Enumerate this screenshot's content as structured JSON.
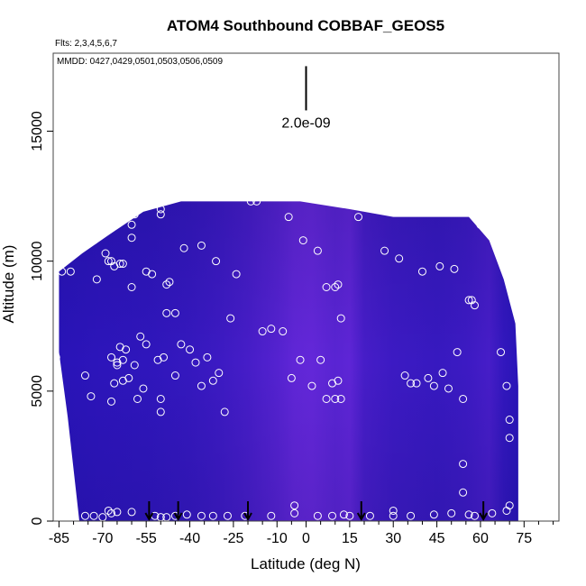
{
  "chart_data": {
    "type": "heatmap",
    "title": "ATOM4 Southbound COBBAF_GEOS5",
    "flights_label": "Flts: 2,3,4,5,6,7",
    "dates_label": "MMDD: 0427,0429,0501,0503,0506,0509",
    "xlabel": "Latitude (deg N)",
    "ylabel": "Altitude (m)",
    "xlim": [
      -87,
      87
    ],
    "ylim": [
      0,
      18000
    ],
    "x_ticks": [
      -85,
      -70,
      -55,
      -40,
      -25,
      -10,
      0,
      15,
      30,
      45,
      60,
      75
    ],
    "x_tick_labels": [
      "-85",
      "-70",
      "-55",
      "-40",
      "-25",
      "-10",
      "0",
      "15",
      "30",
      "45",
      "60",
      "75"
    ],
    "x_minor_ticks": [
      -80,
      -75,
      -65,
      -60,
      -50,
      -45,
      -35,
      -30,
      -20,
      -15,
      -5,
      5,
      10,
      20,
      25,
      35,
      40,
      50,
      55,
      65,
      70,
      80,
      85
    ],
    "y_ticks": [
      0,
      5000,
      10000,
      15000
    ],
    "y_tick_labels": [
      "0",
      "5000",
      "10000",
      "15000"
    ],
    "scale_bar": {
      "label": "2.0e-09",
      "x": 0,
      "y_top": 17500,
      "y_bottom": 15800
    },
    "colors": {
      "low": "#1a0fb0",
      "high": "#7b2fe6",
      "points": "#ffffff",
      "arrow": "#000000"
    },
    "field_extent": {
      "x_min": -85,
      "x_max": 73,
      "y_max": 12300,
      "top_edge": [
        [
          -85,
          9600
        ],
        [
          -77,
          10300
        ],
        [
          -68,
          11000
        ],
        [
          -56,
          11900
        ],
        [
          -43,
          12300
        ],
        [
          -2,
          12300
        ],
        [
          15,
          12000
        ],
        [
          30,
          11700
        ],
        [
          56,
          11700
        ],
        [
          63,
          10800
        ],
        [
          68,
          9300
        ],
        [
          72,
          7600
        ],
        [
          73,
          5200
        ]
      ],
      "bottom_edge": [
        [
          -85,
          6500
        ],
        [
          -82,
          4000
        ],
        [
          -79,
          1000
        ],
        [
          -78,
          0
        ],
        [
          73,
          0
        ]
      ]
    },
    "field_bands": [
      {
        "lat": -85,
        "value": 0.15
      },
      {
        "lat": -70,
        "value": 0.2
      },
      {
        "lat": -55,
        "value": 0.22
      },
      {
        "lat": -40,
        "value": 0.28
      },
      {
        "lat": -30,
        "value": 0.35
      },
      {
        "lat": -20,
        "value": 0.45
      },
      {
        "lat": -10,
        "value": 0.6
      },
      {
        "lat": -4,
        "value": 0.72
      },
      {
        "lat": 2,
        "value": 0.75
      },
      {
        "lat": 10,
        "value": 0.65
      },
      {
        "lat": 15,
        "value": 0.7
      },
      {
        "lat": 20,
        "value": 0.45
      },
      {
        "lat": 30,
        "value": 0.35
      },
      {
        "lat": 45,
        "value": 0.3
      },
      {
        "lat": 55,
        "value": 0.35
      },
      {
        "lat": 63,
        "value": 0.45
      },
      {
        "lat": 68,
        "value": 0.25
      },
      {
        "lat": 73,
        "value": 0.15
      }
    ],
    "arrows_lat": [
      -54,
      -44,
      -20,
      19,
      61
    ],
    "points": [
      [
        -86,
        6300
      ],
      [
        -84,
        9600
      ],
      [
        -81,
        9600
      ],
      [
        -76,
        5600
      ],
      [
        -74,
        4800
      ],
      [
        -72,
        9300
      ],
      [
        -67,
        4600
      ],
      [
        -67,
        6300
      ],
      [
        -66,
        5300
      ],
      [
        -65,
        6000
      ],
      [
        -65,
        6100
      ],
      [
        -64,
        6700
      ],
      [
        -63,
        6200
      ],
      [
        -63,
        5400
      ],
      [
        -62,
        6600
      ],
      [
        -61,
        5500
      ],
      [
        -59,
        6000
      ],
      [
        -58,
        4700
      ],
      [
        -57,
        7100
      ],
      [
        -56,
        5100
      ],
      [
        -55,
        6800
      ],
      [
        -55,
        9600
      ],
      [
        -53,
        9500
      ],
      [
        -51,
        6200
      ],
      [
        -50,
        4700
      ],
      [
        -50,
        4200
      ],
      [
        -49,
        6300
      ],
      [
        -48,
        9100
      ],
      [
        -47,
        9200
      ],
      [
        -48,
        8000
      ],
      [
        -45,
        8000
      ],
      [
        -45,
        5600
      ],
      [
        -43,
        6800
      ],
      [
        -40,
        6600
      ],
      [
        -38,
        6100
      ],
      [
        -36,
        5200
      ],
      [
        -34,
        6300
      ],
      [
        -32,
        5400
      ],
      [
        -30,
        5700
      ],
      [
        -28,
        4200
      ],
      [
        -26,
        7800
      ],
      [
        -15,
        7300
      ],
      [
        -12,
        7400
      ],
      [
        -8,
        7300
      ],
      [
        -5,
        5500
      ],
      [
        -2,
        6200
      ],
      [
        2,
        5200
      ],
      [
        5,
        6200
      ],
      [
        7,
        4700
      ],
      [
        9,
        5300
      ],
      [
        10,
        4700
      ],
      [
        11,
        5400
      ],
      [
        12,
        4700
      ],
      [
        12,
        7800
      ],
      [
        -73,
        10800
      ],
      [
        -69,
        10300
      ],
      [
        -68,
        10000
      ],
      [
        -67,
        10000
      ],
      [
        -66,
        9800
      ],
      [
        -64,
        9900
      ],
      [
        -63,
        9900
      ],
      [
        -60,
        9000
      ],
      [
        -60,
        10900
      ],
      [
        -59,
        11800
      ],
      [
        -60,
        11400
      ],
      [
        -50,
        11800
      ],
      [
        -50,
        12000
      ],
      [
        -42,
        10500
      ],
      [
        -36,
        10600
      ],
      [
        -31,
        10000
      ],
      [
        -24,
        9500
      ],
      [
        -19,
        12300
      ],
      [
        -17,
        12300
      ],
      [
        -6,
        11700
      ],
      [
        -1,
        10800
      ],
      [
        4,
        10400
      ],
      [
        7,
        9000
      ],
      [
        10,
        9000
      ],
      [
        11,
        9100
      ],
      [
        18,
        11700
      ],
      [
        27,
        10400
      ],
      [
        32,
        10100
      ],
      [
        34,
        5600
      ],
      [
        36,
        5300
      ],
      [
        38,
        5300
      ],
      [
        40,
        9600
      ],
      [
        42,
        5500
      ],
      [
        44,
        5200
      ],
      [
        46,
        9800
      ],
      [
        47,
        5700
      ],
      [
        49,
        5100
      ],
      [
        51,
        9700
      ],
      [
        52,
        6500
      ],
      [
        54,
        4700
      ],
      [
        54,
        2200
      ],
      [
        54,
        1100
      ],
      [
        56,
        8500
      ],
      [
        57,
        8500
      ],
      [
        58,
        8300
      ],
      [
        60,
        11400
      ],
      [
        62,
        11400
      ],
      [
        67,
        6500
      ],
      [
        69,
        5200
      ],
      [
        70,
        3900
      ],
      [
        70,
        3200
      ],
      [
        -76,
        200
      ],
      [
        -73,
        200
      ],
      [
        -70,
        150
      ],
      [
        -68,
        400
      ],
      [
        -67,
        300
      ],
      [
        -65,
        350
      ],
      [
        -60,
        350
      ],
      [
        -52,
        200
      ],
      [
        -50,
        150
      ],
      [
        -48,
        150
      ],
      [
        -45,
        200
      ],
      [
        -41,
        250
      ],
      [
        -36,
        200
      ],
      [
        -32,
        200
      ],
      [
        -27,
        200
      ],
      [
        -21,
        200
      ],
      [
        -12,
        200
      ],
      [
        -4,
        600
      ],
      [
        -4,
        300
      ],
      [
        4,
        200
      ],
      [
        9,
        200
      ],
      [
        13,
        250
      ],
      [
        15,
        200
      ],
      [
        22,
        200
      ],
      [
        30,
        400
      ],
      [
        30,
        200
      ],
      [
        36,
        200
      ],
      [
        44,
        250
      ],
      [
        50,
        300
      ],
      [
        56,
        250
      ],
      [
        58,
        200
      ],
      [
        64,
        300
      ],
      [
        69,
        400
      ],
      [
        70,
        600
      ]
    ]
  }
}
